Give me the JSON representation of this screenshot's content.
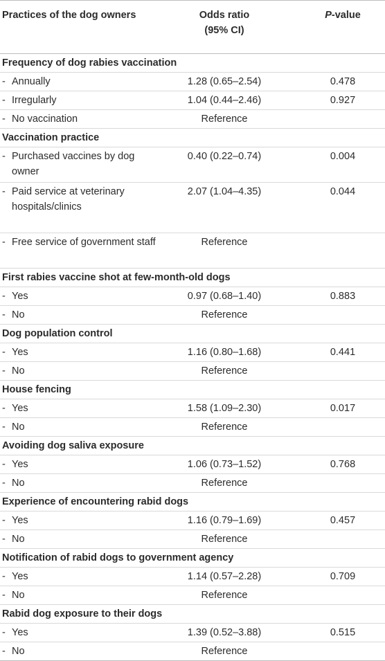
{
  "headers": {
    "practices": "Practices of the dog owners",
    "or_line1": "Odds ratio",
    "or_line2": "(95% CI)",
    "p_italic": "P",
    "p_rest": "-value"
  },
  "dash": "-",
  "sections": [
    {
      "title": "Frequency of dog rabies vaccination",
      "rows": [
        {
          "label": "Annually",
          "or": "1.28 (0.65–2.54)",
          "p": "0.478"
        },
        {
          "label": "Irregularly",
          "or": "1.04 (0.44–2.46)",
          "p": "0.927"
        },
        {
          "label": "No vaccination",
          "or": "Reference",
          "p": ""
        }
      ]
    },
    {
      "title": "Vaccination practice",
      "rows": [
        {
          "label": "Purchased vaccines by dog owner",
          "or": "0.40 (0.22–0.74)",
          "p": "0.004"
        },
        {
          "label": "Paid service at veterinary hospitals/clinics",
          "or": "2.07 (1.04–4.35)",
          "p": "0.044"
        },
        {
          "label": "Free service of government staff",
          "or": "Reference",
          "p": ""
        }
      ]
    },
    {
      "title": "First rabies vaccine shot at few-month-old dogs",
      "rows": [
        {
          "label": "Yes",
          "or": "0.97 (0.68–1.40)",
          "p": "0.883"
        },
        {
          "label": "No",
          "or": "Reference",
          "p": ""
        }
      ]
    },
    {
      "title": "Dog population control",
      "rows": [
        {
          "label": "Yes",
          "or": "1.16 (0.80–1.68)",
          "p": "0.441"
        },
        {
          "label": "No",
          "or": "Reference",
          "p": ""
        }
      ]
    },
    {
      "title": "House fencing",
      "rows": [
        {
          "label": "Yes",
          "or": "1.58 (1.09–2.30)",
          "p": "0.017"
        },
        {
          "label": "No",
          "or": "Reference",
          "p": ""
        }
      ]
    },
    {
      "title": "Avoiding dog saliva exposure",
      "rows": [
        {
          "label": "Yes",
          "or": "1.06 (0.73–1.52)",
          "p": "0.768"
        },
        {
          "label": "No",
          "or": "Reference",
          "p": ""
        }
      ]
    },
    {
      "title": "Experience of encountering rabid dogs",
      "rows": [
        {
          "label": "Yes",
          "or": "1.16 (0.79–1.69)",
          "p": "0.457"
        },
        {
          "label": "No",
          "or": "Reference",
          "p": ""
        }
      ]
    },
    {
      "title": "Notification of rabid dogs to government agency",
      "rows": [
        {
          "label": "Yes",
          "or": "1.14 (0.57–2.28)",
          "p": "0.709"
        },
        {
          "label": "No",
          "or": "Reference",
          "p": ""
        }
      ]
    },
    {
      "title": "Rabid dog exposure to their dogs",
      "rows": [
        {
          "label": "Yes",
          "or": "1.39 (0.52–3.88)",
          "p": "0.515"
        },
        {
          "label": "No",
          "or": "Reference",
          "p": ""
        }
      ]
    }
  ]
}
